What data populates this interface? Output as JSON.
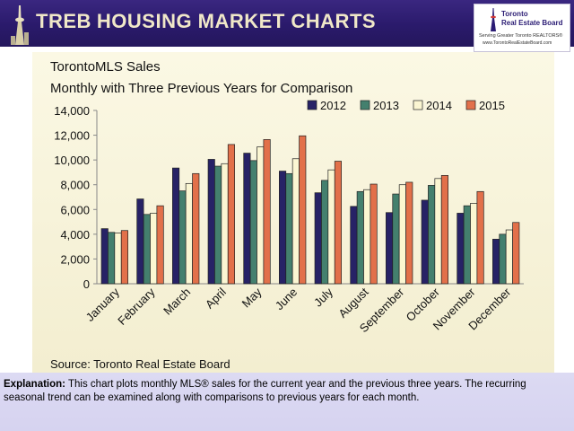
{
  "header": {
    "title_brand": "TREB",
    "title_rest": "HOUSING MARKET CHARTS"
  },
  "logo": {
    "line1": "Toronto",
    "line2": "Real Estate Board",
    "line3": "Serving Greater Toronto REALTORS®",
    "line4": "www.TorontoRealEstateBoard.com"
  },
  "chart_title": {
    "line1": "TorontoMLS Sales",
    "line2": "Monthly with Three Previous Years for Comparison"
  },
  "source": "Source: Toronto Real Estate Board",
  "explanation": {
    "label": "Explanation:",
    "text": " This chart plots monthly MLS® sales for the current year and the previous three years. The recurring seasonal trend can be examined along with comparisons to previous years for each month."
  },
  "colors": {
    "y2012": "#272266",
    "y2013": "#44806e",
    "y2014": "#fbf6d2",
    "y2015": "#e2704a"
  },
  "chart_data": {
    "type": "bar",
    "title": "TorontoMLS Sales",
    "subtitle": "Monthly with Three Previous Years for Comparison",
    "xlabel": "",
    "ylabel": "",
    "ylim": [
      0,
      14000
    ],
    "yticks": [
      0,
      2000,
      4000,
      6000,
      8000,
      10000,
      12000,
      14000
    ],
    "ytick_labels": [
      "0",
      "2,000",
      "4,000",
      "6,000",
      "8,000",
      "10,000",
      "12,000",
      "14,000"
    ],
    "legend_position": "top-right",
    "categories": [
      "January",
      "February",
      "March",
      "April",
      "May",
      "June",
      "July",
      "August",
      "September",
      "October",
      "November",
      "December"
    ],
    "series": [
      {
        "name": "2012",
        "values": [
          4450,
          6850,
          9350,
          10050,
          10550,
          9100,
          7350,
          6250,
          5750,
          6750,
          5700,
          3600
        ]
      },
      {
        "name": "2013",
        "values": [
          4150,
          5600,
          7500,
          9500,
          9950,
          8900,
          8350,
          7450,
          7250,
          7950,
          6300,
          4000
        ]
      },
      {
        "name": "2014",
        "values": [
          4100,
          5700,
          8100,
          9700,
          11050,
          10100,
          9200,
          7600,
          8000,
          8500,
          6500,
          4350
        ]
      },
      {
        "name": "2015",
        "values": [
          4300,
          6300,
          8900,
          11250,
          11650,
          11950,
          9900,
          8050,
          8200,
          8750,
          7450,
          4950
        ]
      }
    ]
  }
}
